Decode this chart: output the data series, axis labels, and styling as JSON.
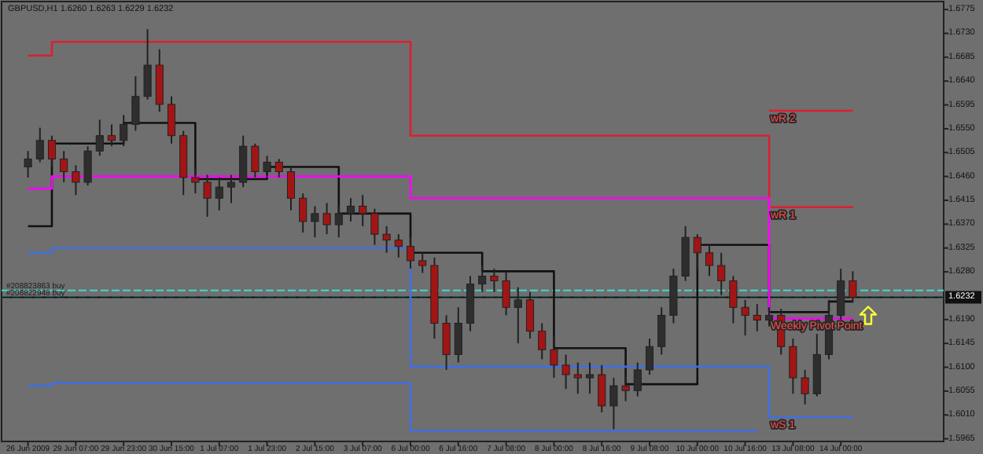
{
  "chart_data": {
    "type": "candlestick",
    "title": "GBPUSD,H1  1.6260 1.6263 1.6229 1.6232",
    "categories": [
      "26 Jun 2009",
      null,
      null,
      null,
      "29 Jun 07:00",
      null,
      null,
      null,
      "29 Jun 23:00",
      null,
      null,
      null,
      "30 Jun 15:00",
      null,
      null,
      null,
      "1 Jul 07:00",
      null,
      null,
      null,
      "1 Jul 23:00",
      null,
      null,
      null,
      "2 Jul 15:00",
      null,
      null,
      null,
      "3 Jul 07:00",
      null,
      null,
      null,
      "6 Jul 00:00",
      null,
      null,
      null,
      "6 Jul 16:00",
      null,
      null,
      null,
      "7 Jul 08:00",
      null,
      null,
      null,
      "8 Jul 00:00",
      null,
      null,
      null,
      "8 Jul 16:00",
      null,
      null,
      null,
      "9 Jul 08:00",
      null,
      null,
      null,
      "10 Jul 00:00",
      null,
      null,
      null,
      "10 Jul 16:00",
      null,
      null,
      null,
      "13 Jul 08:00",
      null,
      null,
      null,
      "14 Jul 00:00",
      null
    ],
    "ohlc": [
      [
        1.6478,
        1.6508,
        1.6458,
        1.6493
      ],
      [
        1.6493,
        1.6552,
        1.6487,
        1.6528
      ],
      [
        1.6528,
        1.6537,
        1.6478,
        1.6493
      ],
      [
        1.6493,
        1.6508,
        1.6449,
        1.6469
      ],
      [
        1.6469,
        1.6481,
        1.6425,
        1.6449
      ],
      [
        1.6449,
        1.6517,
        1.6443,
        1.6508
      ],
      [
        1.6508,
        1.6567,
        1.6499,
        1.6537
      ],
      [
        1.6537,
        1.6558,
        1.6517,
        1.6528
      ],
      [
        1.6528,
        1.6576,
        1.6517,
        1.6558
      ],
      [
        1.6558,
        1.6649,
        1.6546,
        1.6611
      ],
      [
        1.6611,
        1.6738,
        1.6605,
        1.667
      ],
      [
        1.667,
        1.67,
        1.6582,
        1.6596
      ],
      [
        1.6596,
        1.6611,
        1.6522,
        1.6537
      ],
      [
        1.6537,
        1.6546,
        1.6425,
        1.6458
      ],
      [
        1.6458,
        1.6478,
        1.6428,
        1.6449
      ],
      [
        1.6449,
        1.6463,
        1.6384,
        1.6419
      ],
      [
        1.6419,
        1.6458,
        1.6396,
        1.644
      ],
      [
        1.644,
        1.6463,
        1.641,
        1.6449
      ],
      [
        1.6449,
        1.6537,
        1.644,
        1.6517
      ],
      [
        1.6517,
        1.6522,
        1.6458,
        1.6469
      ],
      [
        1.6469,
        1.6499,
        1.6458,
        1.6487
      ],
      [
        1.6487,
        1.6493,
        1.6458,
        1.6469
      ],
      [
        1.6469,
        1.6478,
        1.6396,
        1.6419
      ],
      [
        1.6419,
        1.6428,
        1.6354,
        1.6375
      ],
      [
        1.6375,
        1.6404,
        1.6345,
        1.639
      ],
      [
        1.639,
        1.641,
        1.6351,
        1.6369
      ],
      [
        1.6369,
        1.6404,
        1.6345,
        1.639
      ],
      [
        1.639,
        1.6419,
        1.6375,
        1.6404
      ],
      [
        1.6404,
        1.6425,
        1.6366,
        1.639
      ],
      [
        1.639,
        1.6399,
        1.6331,
        1.6351
      ],
      [
        1.6351,
        1.6366,
        1.6316,
        1.634
      ],
      [
        1.634,
        1.6351,
        1.6307,
        1.6328
      ],
      [
        1.6328,
        1.6345,
        1.6286,
        1.6301
      ],
      [
        1.6301,
        1.6316,
        1.6278,
        1.6292
      ],
      [
        1.6292,
        1.6307,
        1.6154,
        1.6183
      ],
      [
        1.6183,
        1.6198,
        1.6095,
        1.6124
      ],
      [
        1.6124,
        1.6213,
        1.6109,
        1.6183
      ],
      [
        1.6183,
        1.6272,
        1.6168,
        1.6257
      ],
      [
        1.6257,
        1.6292,
        1.6242,
        1.6272
      ],
      [
        1.6272,
        1.6286,
        1.6242,
        1.6263
      ],
      [
        1.6263,
        1.6281,
        1.6198,
        1.6213
      ],
      [
        1.6213,
        1.6251,
        1.6145,
        1.6227
      ],
      [
        1.6227,
        1.6242,
        1.6154,
        1.6168
      ],
      [
        1.6168,
        1.6183,
        1.6115,
        1.6133
      ],
      [
        1.6133,
        1.616,
        1.608,
        1.6104
      ],
      [
        1.6104,
        1.6124,
        1.6059,
        1.6086
      ],
      [
        1.6086,
        1.6109,
        1.605,
        1.608
      ],
      [
        1.608,
        1.6109,
        1.605,
        1.6086
      ],
      [
        1.6086,
        1.6104,
        1.6015,
        1.6027
      ],
      [
        1.6027,
        1.608,
        1.5983,
        1.6065
      ],
      [
        1.6065,
        1.6086,
        1.6036,
        1.6056
      ],
      [
        1.6056,
        1.6109,
        1.6045,
        1.6095
      ],
      [
        1.6095,
        1.6154,
        1.6086,
        1.6139
      ],
      [
        1.6139,
        1.6213,
        1.6124,
        1.6198
      ],
      [
        1.6198,
        1.6286,
        1.6183,
        1.6272
      ],
      [
        1.6272,
        1.6366,
        1.6263,
        1.6345
      ],
      [
        1.6345,
        1.6351,
        1.6286,
        1.6316
      ],
      [
        1.6316,
        1.6331,
        1.6272,
        1.6292
      ],
      [
        1.6292,
        1.6316,
        1.6236,
        1.6263
      ],
      [
        1.6263,
        1.6272,
        1.6183,
        1.6213
      ],
      [
        1.6213,
        1.6227,
        1.616,
        1.6198
      ],
      [
        1.6198,
        1.6219,
        1.6168,
        1.6189
      ],
      [
        1.6189,
        1.6213,
        1.6177,
        1.6198
      ],
      [
        1.6198,
        1.621,
        1.6124,
        1.6139
      ],
      [
        1.6139,
        1.6154,
        1.605,
        1.608
      ],
      [
        1.608,
        1.6095,
        1.603,
        1.605
      ],
      [
        1.605,
        1.6163,
        1.6045,
        1.6124
      ],
      [
        1.6124,
        1.6227,
        1.6115,
        1.6198
      ],
      [
        1.6198,
        1.6286,
        1.6189,
        1.6263
      ],
      [
        1.6263,
        1.6281,
        1.6222,
        1.6232
      ]
    ],
    "colors": [
      "#2e2e2e",
      "#2e2e2e",
      "#a31515",
      "#a31515",
      "#a31515",
      "#2e2e2e",
      "#2e2e2e",
      "#a31515",
      "#2e2e2e",
      "#2e2e2e",
      "#2e2e2e",
      "#a31515",
      "#a31515",
      "#a31515",
      "#a31515",
      "#a31515",
      "#2e2e2e",
      "#2e2e2e",
      "#2e2e2e",
      "#a31515",
      "#2e2e2e",
      "#a31515",
      "#a31515",
      "#a31515",
      "#2e2e2e",
      "#a31515",
      "#2e2e2e",
      "#2e2e2e",
      "#a31515",
      "#a31515",
      "#a31515",
      "#a31515",
      "#a31515",
      "#a31515",
      "#a31515",
      "#a31515",
      "#2e2e2e",
      "#2e2e2e",
      "#2e2e2e",
      "#a31515",
      "#a31515",
      "#2e2e2e",
      "#a31515",
      "#a31515",
      "#a31515",
      "#a31515",
      "#a31515",
      "#2e2e2e",
      "#a31515",
      "#2e2e2e",
      "#a31515",
      "#2e2e2e",
      "#2e2e2e",
      "#2e2e2e",
      "#2e2e2e",
      "#2e2e2e",
      "#a31515",
      "#a31515",
      "#a31515",
      "#a31515",
      "#a31515",
      "#a31515",
      "#2e2e2e",
      "#a31515",
      "#a31515",
      "#a31515",
      "#2e2e2e",
      "#2e2e2e",
      "#2e2e2e",
      "#a31515"
    ],
    "series": [
      {
        "type": "step",
        "color": "#111111",
        "values": [
          1.6366,
          1.6366,
          1.6522,
          1.6522,
          1.6522,
          1.6522,
          1.6522,
          1.6522,
          1.6561,
          1.6561,
          1.6561,
          1.6561,
          1.6561,
          1.6561,
          1.6455,
          1.6455,
          1.6455,
          1.6455,
          1.6455,
          1.6455,
          1.6478,
          1.6478,
          1.6478,
          1.6478,
          1.6478,
          1.6478,
          1.639,
          1.639,
          1.639,
          1.639,
          1.639,
          1.639,
          1.6316,
          1.6316,
          1.6316,
          1.6316,
          1.6316,
          1.6316,
          1.6281,
          1.6281,
          1.6281,
          1.6281,
          1.6281,
          1.6281,
          1.6136,
          1.6136,
          1.6136,
          1.6136,
          1.6136,
          1.6136,
          1.6068,
          1.6068,
          1.6068,
          1.6068,
          1.6068,
          1.6068,
          1.6331,
          1.6331,
          1.6331,
          1.6331,
          1.6331,
          1.6331,
          1.6204,
          1.6204,
          1.6204,
          1.6204,
          1.6204,
          1.6224,
          1.6224,
          1.6224
        ]
      },
      {
        "type": "step",
        "color": "#dc1e32",
        "values": [
          1.6688,
          1.6688,
          1.6714,
          1.6714,
          1.6714,
          1.6714,
          1.6714,
          1.6714,
          1.6714,
          1.6714,
          1.6714,
          1.6714,
          1.6714,
          1.6714,
          1.6714,
          1.6714,
          1.6714,
          1.6714,
          1.6714,
          1.6714,
          1.6714,
          1.6714,
          1.6714,
          1.6714,
          1.6714,
          1.6714,
          1.6714,
          1.6714,
          1.6714,
          1.6714,
          1.6714,
          1.6714,
          1.6537,
          1.6537,
          1.6537,
          1.6537,
          1.6537,
          1.6537,
          1.6537,
          1.6537,
          1.6537,
          1.6537,
          1.6537,
          1.6537,
          1.6537,
          1.6537,
          1.6537,
          1.6537,
          1.6537,
          1.6537,
          1.6537,
          1.6537,
          1.6537,
          1.6537,
          1.6537,
          1.6537,
          1.6537,
          1.6537,
          1.6537,
          1.6537,
          1.6537,
          1.6537,
          1.6402,
          1.6402,
          1.6402,
          1.6402,
          1.6402,
          1.6402,
          1.6402,
          1.6402
        ]
      },
      {
        "type": "step",
        "color": "#dc1e32",
        "values": [
          null,
          null,
          null,
          null,
          null,
          null,
          null,
          null,
          null,
          null,
          null,
          null,
          null,
          null,
          null,
          null,
          null,
          null,
          null,
          null,
          null,
          null,
          null,
          null,
          null,
          null,
          null,
          null,
          null,
          null,
          null,
          null,
          null,
          null,
          null,
          null,
          null,
          null,
          null,
          null,
          null,
          null,
          null,
          null,
          null,
          null,
          null,
          null,
          null,
          null,
          null,
          null,
          null,
          null,
          null,
          null,
          null,
          null,
          null,
          null,
          null,
          null,
          1.6584,
          1.6584,
          1.6584,
          1.6584,
          1.6584,
          1.6584,
          1.6584,
          1.6584
        ]
      },
      {
        "type": "step",
        "color": "#ff00ff",
        "values": [
          1.6437,
          1.6437,
          1.646,
          1.646,
          1.646,
          1.646,
          1.646,
          1.646,
          1.646,
          1.646,
          1.646,
          1.646,
          1.646,
          1.646,
          1.646,
          1.646,
          1.646,
          1.646,
          1.646,
          1.646,
          1.646,
          1.646,
          1.646,
          1.646,
          1.646,
          1.646,
          1.646,
          1.646,
          1.646,
          1.646,
          1.646,
          1.646,
          1.6419,
          1.6419,
          1.6419,
          1.6419,
          1.6419,
          1.6419,
          1.6419,
          1.6419,
          1.6419,
          1.6419,
          1.6419,
          1.6419,
          1.6419,
          1.6419,
          1.6419,
          1.6419,
          1.6419,
          1.6419,
          1.6419,
          1.6419,
          1.6419,
          1.6419,
          1.6419,
          1.6419,
          1.6419,
          1.6419,
          1.6419,
          1.6419,
          1.6419,
          1.6419,
          1.6192,
          1.6192,
          1.6192,
          1.6192,
          1.6192,
          1.6192,
          1.6192,
          1.6192
        ]
      },
      {
        "type": "step",
        "color": "#3f6fe0",
        "values": [
          1.6316,
          1.6316,
          1.6325,
          1.6325,
          1.6325,
          1.6325,
          1.6325,
          1.6325,
          1.6325,
          1.6325,
          1.6325,
          1.6325,
          1.6325,
          1.6325,
          1.6325,
          1.6325,
          1.6325,
          1.6325,
          1.6325,
          1.6325,
          1.6325,
          1.6325,
          1.6325,
          1.6325,
          1.6325,
          1.6325,
          1.6325,
          1.6325,
          1.6325,
          1.6325,
          1.6325,
          1.6325,
          1.6101,
          1.6101,
          1.6101,
          1.6101,
          1.6101,
          1.6101,
          1.6101,
          1.6101,
          1.6101,
          1.6101,
          1.6101,
          1.6101,
          1.6101,
          1.6101,
          1.6101,
          1.6101,
          1.6101,
          1.6101,
          1.6101,
          1.6101,
          1.6101,
          1.6101,
          1.6101,
          1.6101,
          1.6101,
          1.6101,
          1.6101,
          1.6101,
          1.6101,
          1.6101,
          1.6006,
          1.6006,
          1.6006,
          1.6006,
          1.6006,
          1.6006,
          1.6006,
          1.6006
        ]
      },
      {
        "type": "step",
        "color": "#3f6fe0",
        "values": [
          1.6065,
          1.6065,
          1.607,
          1.607,
          1.607,
          1.607,
          1.607,
          1.607,
          1.607,
          1.607,
          1.607,
          1.607,
          1.607,
          1.607,
          1.607,
          1.607,
          1.607,
          1.607,
          1.607,
          1.607,
          1.607,
          1.607,
          1.607,
          1.607,
          1.607,
          1.607,
          1.607,
          1.607,
          1.607,
          1.607,
          1.607,
          1.607,
          1.598,
          1.598,
          1.598,
          1.598,
          1.598,
          1.598,
          1.598,
          1.598,
          1.598,
          1.598,
          1.598,
          1.598,
          1.598,
          1.598,
          1.598,
          1.598,
          1.598,
          1.598,
          1.598,
          1.598,
          1.598,
          1.598,
          1.598,
          1.598,
          1.598,
          1.598,
          1.598,
          1.598,
          1.598,
          1.598,
          null,
          null,
          null,
          null,
          null,
          null,
          null,
          null
        ]
      }
    ],
    "ylim": [
      1.596,
      1.679
    ],
    "yticks": [
      1.5965,
      {
        "value": 1.601,
        "label": "1.6010"
      },
      1.6055,
      {
        "value": 1.61,
        "label": "1.6100"
      },
      1.6145,
      {
        "value": 1.619,
        "label": "1.6190"
      },
      {
        "value": 1.628,
        "label": "1.6280"
      },
      1.6325,
      {
        "value": 1.637,
        "label": "1.6370"
      },
      1.6415,
      {
        "value": 1.646,
        "label": "1.6460"
      },
      1.6505,
      {
        "value": 1.655,
        "label": "1.6550"
      },
      1.6595,
      {
        "value": 1.664,
        "label": "1.6640"
      },
      1.6685,
      {
        "value": 1.673,
        "label": "1.6730"
      },
      1.6775
    ],
    "ref_lines": [
      {
        "axis": "y",
        "value": 1.6245,
        "label": "#208823863 buy",
        "color": "#40d8d0",
        "line_style": "dashed"
      },
      {
        "axis": "y",
        "value": 1.6232,
        "label": "#208822948 buy",
        "color": "#40d8d0",
        "line_style": "dashed"
      },
      {
        "axis": "y",
        "value": 1.6232,
        "label": "1.6232",
        "color": "#111111"
      }
    ],
    "annotations": [
      {
        "text": "wR 2",
        "y": 1.6584
      },
      {
        "text": "wR 1",
        "y": 1.6402
      },
      {
        "text": "Weekly Pivot Point",
        "y": 1.6192
      },
      {
        "text": "wS 1",
        "y": 1.6006
      }
    ]
  }
}
